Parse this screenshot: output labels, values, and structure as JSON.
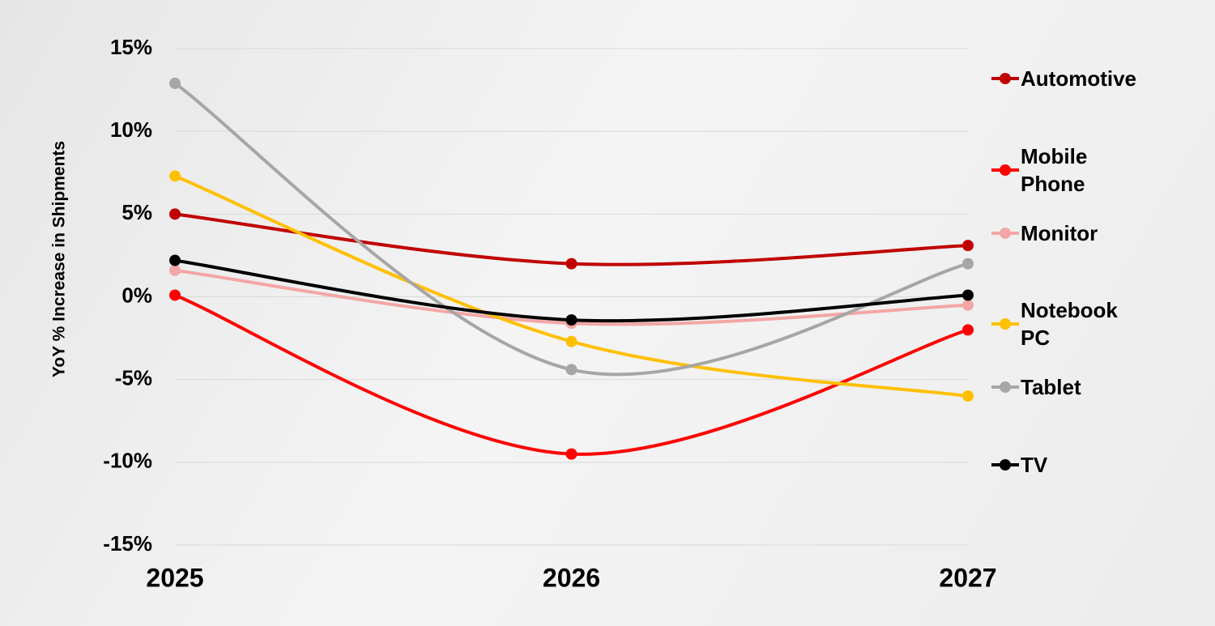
{
  "chart_data": {
    "type": "line",
    "y_label": "YoY % Increase in Shipments",
    "categories": [
      "2025",
      "2026",
      "2027"
    ],
    "series": [
      {
        "name": "Automotive",
        "color": "#c00000",
        "values": [
          5.0,
          2.0,
          3.1
        ]
      },
      {
        "name": "Mobile Phone",
        "color": "#ff0000",
        "values": [
          0.1,
          -9.5,
          -2.0
        ]
      },
      {
        "name": "Monitor",
        "color": "#f4a6a6",
        "values": [
          1.6,
          -1.6,
          -0.5
        ]
      },
      {
        "name": "Notebook PC",
        "color": "#ffc000",
        "values": [
          7.3,
          -2.7,
          -6.0
        ]
      },
      {
        "name": "Tablet",
        "color": "#a6a6a6",
        "values": [
          12.9,
          -4.4,
          2.0
        ]
      },
      {
        "name": "TV",
        "color": "#000000",
        "values": [
          2.2,
          -1.4,
          0.1
        ]
      }
    ],
    "ylim": [
      -15,
      15
    ],
    "yticks": [
      {
        "value": -15,
        "label": "-15%"
      },
      {
        "value": -10,
        "label": "-10%"
      },
      {
        "value": -5,
        "label": "-5%"
      },
      {
        "value": 0,
        "label": "0%"
      },
      {
        "value": 5,
        "label": "5%"
      },
      {
        "value": 10,
        "label": "10%"
      },
      {
        "value": 15,
        "label": "15%"
      }
    ],
    "grid": true,
    "smooth": true,
    "legend": "right"
  }
}
